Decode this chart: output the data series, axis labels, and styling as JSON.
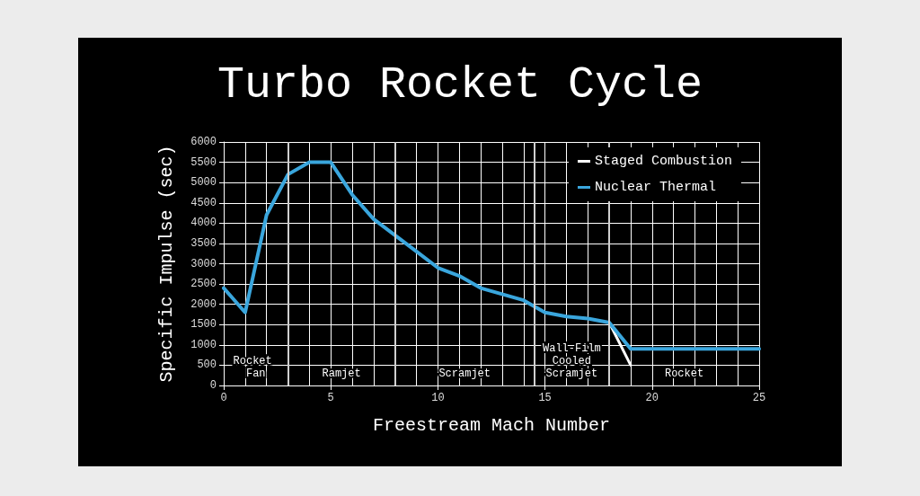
{
  "chart_data": {
    "type": "line",
    "title": "Turbo Rocket Cycle",
    "xlabel": "Freestream Mach Number",
    "ylabel": "Specific Impulse (sec)",
    "x": [
      0,
      1,
      2,
      3,
      4,
      5,
      6,
      7,
      8,
      9,
      10,
      11,
      12,
      13,
      14,
      15,
      16,
      17,
      18,
      19,
      20,
      21,
      22,
      23,
      24,
      25
    ],
    "series": [
      {
        "name": "Staged Combustion",
        "color": "#ffffff",
        "values": [
          null,
          null,
          null,
          null,
          null,
          null,
          null,
          null,
          null,
          null,
          null,
          null,
          null,
          null,
          null,
          null,
          null,
          null,
          1550,
          500,
          null,
          null,
          null,
          null,
          null,
          null
        ]
      },
      {
        "name": "Nuclear Thermal",
        "color": "#3aa6dd",
        "values": [
          2400,
          1800,
          4200,
          5200,
          5500,
          5500,
          4700,
          4100,
          3700,
          3300,
          2900,
          2700,
          2400,
          2250,
          2100,
          1800,
          1700,
          1650,
          1550,
          900,
          900,
          900,
          900,
          900,
          900,
          900
        ]
      }
    ],
    "xlim": [
      0,
      25
    ],
    "xticks": [
      0,
      5,
      10,
      15,
      20,
      25
    ],
    "ylim": [
      0,
      6000
    ],
    "yticks": [
      0,
      500,
      1000,
      1500,
      2000,
      2500,
      3000,
      3500,
      4000,
      4500,
      5000,
      5500,
      6000
    ],
    "ref_lines": [
      {
        "axis": "x",
        "value": 3,
        "color": "#d0d0d0"
      },
      {
        "axis": "x",
        "value": 8,
        "color": "#d0d0d0"
      },
      {
        "axis": "x",
        "value": 14.5,
        "color": "#d0d0d0"
      },
      {
        "axis": "x",
        "value": 18,
        "color": "#d0d0d0"
      }
    ],
    "annotations": [
      "Rocket Fan",
      "Ramjet",
      "Scramjet",
      "Wall-Film Cooled Scramjet",
      "Rocket"
    ],
    "grid": true,
    "legend": "top right",
    "marker": "none",
    "line_style": "solid"
  }
}
